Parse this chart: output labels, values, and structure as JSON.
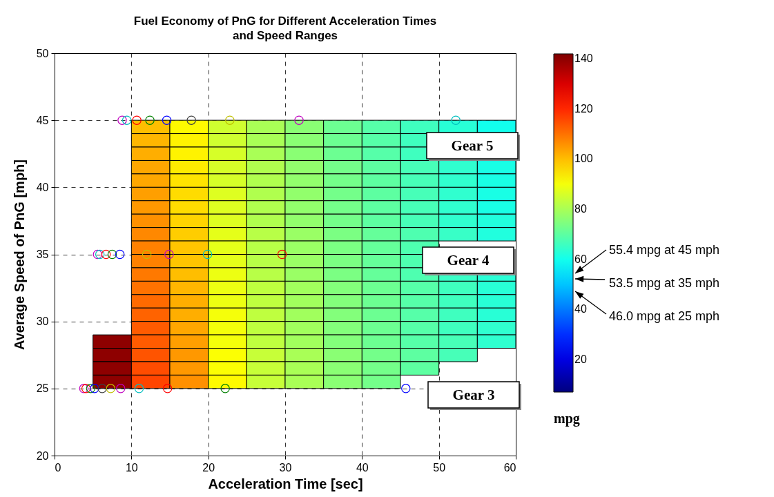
{
  "chart_data": {
    "type": "heatmap",
    "title": "Fuel Economy of PnG for Different Acceleration Times\nand Speed Ranges",
    "xlabel": "Acceleration Time [sec]",
    "ylabel": "Average Speed of PnG [mph]",
    "clabel": "mpg",
    "xlim": [
      0,
      60
    ],
    "xticks": [
      0,
      10,
      20,
      30,
      40,
      50,
      60
    ],
    "ylim": [
      20,
      50
    ],
    "yticks": [
      20,
      25,
      30,
      35,
      40,
      45,
      50
    ],
    "clim": [
      7,
      142
    ],
    "cticks": [
      20,
      40,
      60,
      80,
      100,
      120,
      140
    ],
    "grid": true,
    "x": [
      7.5,
      12.5,
      17.5,
      22.5,
      27.5,
      32.5,
      37.5,
      42.5,
      47.5,
      52.5,
      57.5
    ],
    "y": [
      44.5,
      43.5,
      42.5,
      41.5,
      40.5,
      39.5,
      38.5,
      37.5,
      36.5,
      35.5,
      34.5,
      33.5,
      32.5,
      31.5,
      30.5,
      29.5,
      28.5,
      27.5,
      26.5,
      25.5
    ],
    "cells": [
      [
        null,
        100,
        92,
        85,
        80,
        76,
        72,
        69,
        66,
        63,
        60
      ],
      [
        null,
        101,
        93,
        85,
        80,
        76,
        72,
        69,
        66,
        null,
        null
      ],
      [
        null,
        102,
        93,
        86,
        80,
        76,
        72,
        69,
        66,
        null,
        null
      ],
      [
        null,
        103,
        94,
        86,
        81,
        77,
        73,
        70,
        67,
        64,
        61
      ],
      [
        null,
        103,
        95,
        86,
        81,
        77,
        73,
        70,
        67,
        64,
        61
      ],
      [
        null,
        104,
        96,
        87,
        81,
        77,
        73,
        70,
        67,
        64,
        61
      ],
      [
        null,
        105,
        96,
        87,
        81,
        77,
        73,
        70,
        67,
        64,
        61
      ],
      [
        null,
        106,
        97,
        87,
        81,
        77,
        73,
        70,
        67,
        64,
        62
      ],
      [
        null,
        107,
        98,
        88,
        82,
        78,
        74,
        71,
        68,
        65,
        62
      ],
      [
        null,
        108,
        99,
        88,
        82,
        78,
        74,
        71,
        68,
        null,
        null
      ],
      [
        null,
        108,
        99,
        88,
        82,
        78,
        74,
        71,
        68,
        null,
        null
      ],
      [
        null,
        109,
        100,
        89,
        82,
        78,
        74,
        71,
        68,
        65,
        63
      ],
      [
        null,
        110,
        101,
        89,
        83,
        79,
        75,
        72,
        69,
        66,
        63
      ],
      [
        null,
        111,
        102,
        89,
        83,
        79,
        75,
        72,
        69,
        66,
        63
      ],
      [
        null,
        112,
        102,
        90,
        83,
        79,
        75,
        72,
        69,
        66,
        63
      ],
      [
        null,
        113,
        103,
        90,
        83,
        79,
        75,
        72,
        69,
        66,
        64
      ],
      [
        140,
        113,
        104,
        90,
        83,
        79,
        75,
        72,
        69,
        67,
        64
      ],
      [
        140,
        114,
        105,
        91,
        84,
        80,
        76,
        73,
        70,
        67,
        null
      ],
      [
        140,
        115,
        105,
        91,
        84,
        80,
        76,
        73,
        70,
        null,
        null
      ],
      [
        140,
        116,
        106,
        92,
        84,
        80,
        76,
        73,
        null,
        null,
        null
      ]
    ],
    "series": [
      {
        "type": "scatter",
        "marker": "circle",
        "x": [
          8.8,
          9.4,
          10.7,
          12.4,
          14.6,
          17.8,
          22.8,
          31.8,
          52.2,
          5.6,
          5.9,
          6.7,
          7.5,
          8.5,
          12.0,
          14.9,
          19.9,
          29.6,
          3.8,
          4.1,
          4.7,
          5.2,
          6.2,
          7.3,
          8.6,
          11.0,
          14.7,
          22.2,
          45.7
        ],
        "values": [
          45,
          45,
          45,
          45,
          45,
          45,
          45,
          45,
          45,
          35,
          35,
          35,
          35,
          35,
          35,
          35,
          35,
          35,
          25,
          25,
          25,
          25,
          25,
          25,
          25,
          25,
          25,
          25,
          25
        ],
        "colors": [
          "#c000c0",
          "#00bfbf",
          "#ff0000",
          "#008000",
          "#0000ff",
          "#404040",
          "#bfbf00",
          "#c000c0",
          "#00bfbf",
          "#c000c0",
          "#00bfbf",
          "#ff0000",
          "#008000",
          "#0000ff",
          "#bfbf00",
          "#c000c0",
          "#00bfbf",
          "#ff0000",
          "#c000c0",
          "#ff0000",
          "#008000",
          "#0000ff",
          "#404040",
          "#bfbf00",
          "#c000c0",
          "#00bfbf",
          "#ff0000",
          "#008000",
          "#0000ff"
        ]
      }
    ],
    "annotations": [
      "Gear 5",
      "Gear 4",
      "Gear 3",
      "55.4 mpg at 45 mph",
      "53.5 mpg at 35 mph",
      "46.0 mpg at 25 mph"
    ]
  }
}
